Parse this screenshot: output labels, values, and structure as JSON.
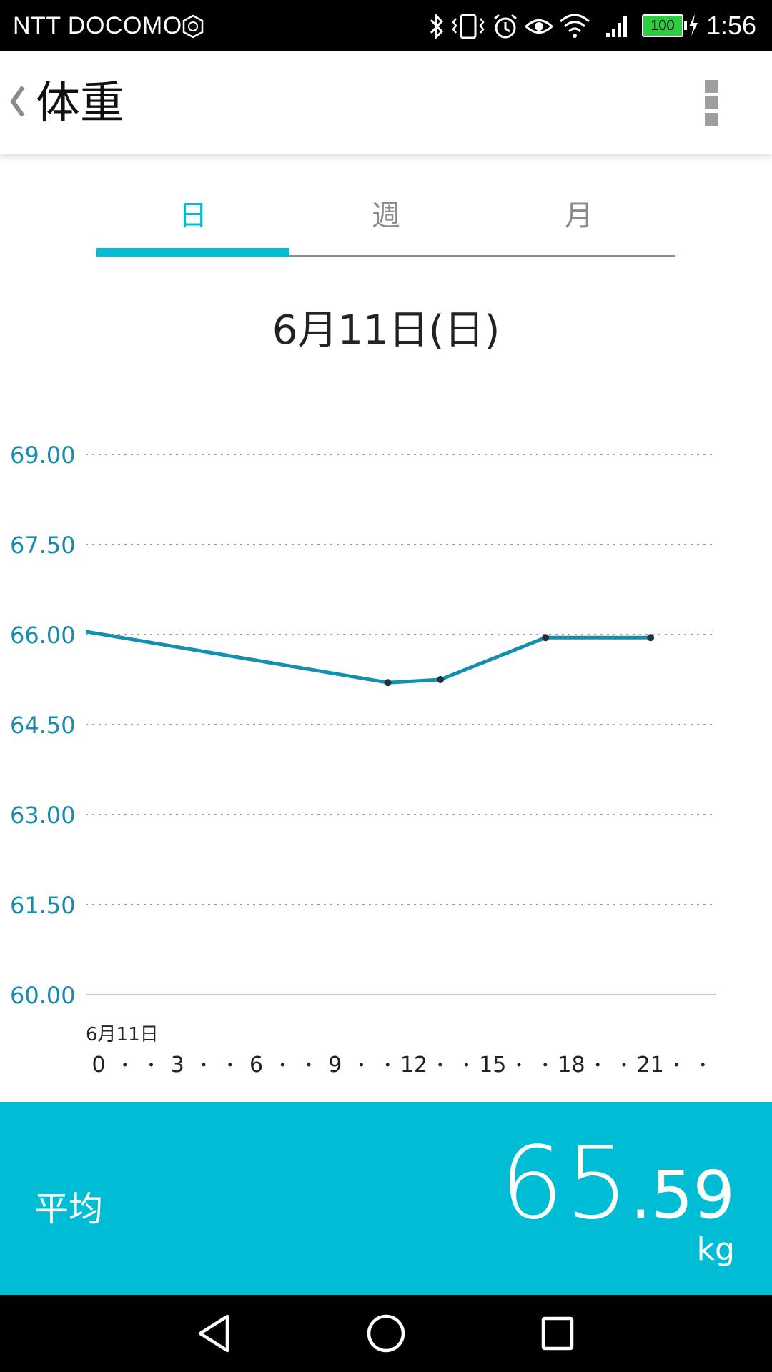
{
  "status_bar": {
    "carrier": "NTT DOCOMO",
    "battery": "100",
    "time": "1:56",
    "icons": [
      "bluetooth-icon",
      "vibrate-icon",
      "alarm-icon",
      "eye-icon",
      "wifi-icon",
      "signal-icon",
      "battery-icon",
      "charging-icon"
    ]
  },
  "app_bar": {
    "title": "体重",
    "back_icon": "chevron-left-icon",
    "menu_icon": "overflow-menu-icon"
  },
  "tabs": [
    {
      "label": "日",
      "active": true
    },
    {
      "label": "週",
      "active": false
    },
    {
      "label": "月",
      "active": false
    }
  ],
  "date_title": "6月11日(日)",
  "chart_data": {
    "type": "line",
    "x_tick_labels": [
      "0",
      "3",
      "6",
      "9",
      "12",
      "15",
      "18",
      "21"
    ],
    "x_date_label": "6月11日",
    "y_tick_labels": [
      "69.00",
      "67.50",
      "66.00",
      "64.50",
      "63.00",
      "61.50",
      "60.00"
    ],
    "xlim": [
      0,
      24
    ],
    "ylim": [
      60,
      69
    ],
    "grid": true,
    "series": [
      {
        "x": [
          0,
          11.5,
          13.5,
          17.5,
          21.5
        ],
        "y": [
          66.05,
          65.2,
          65.25,
          65.95,
          65.95
        ],
        "color": "#138fb0"
      }
    ]
  },
  "summary": {
    "label": "平均",
    "value_int": "65",
    "value_dec": ".59",
    "unit": "kg"
  },
  "nav_bar": {
    "back_icon": "nav-back-icon",
    "home_icon": "nav-home-icon",
    "recents_icon": "nav-recents-icon"
  },
  "colors": {
    "accent": "#00bcd4",
    "axis_label": "#1a8bb0",
    "line": "#138fb0"
  }
}
